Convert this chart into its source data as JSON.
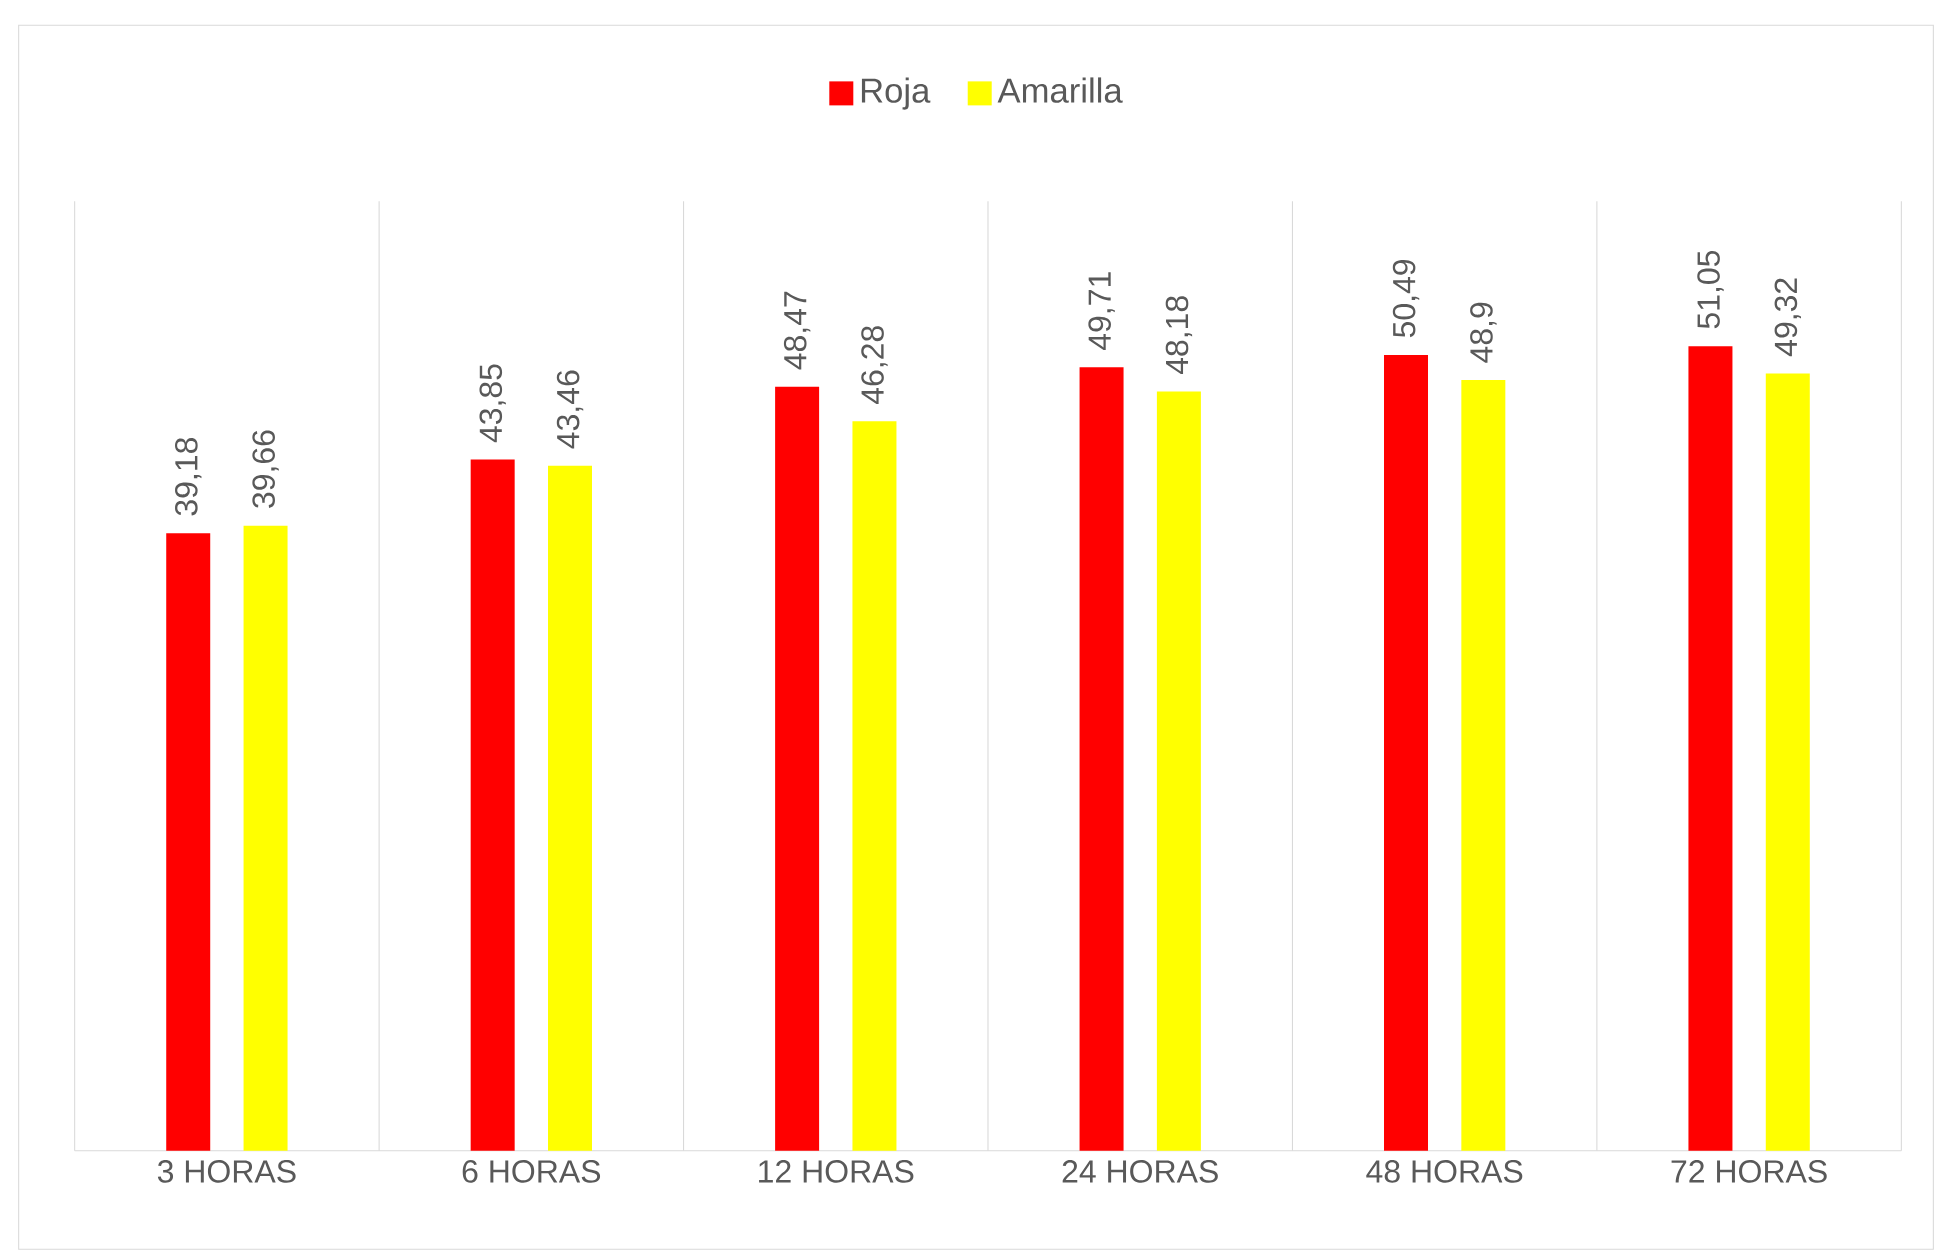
{
  "chart_data": {
    "type": "bar",
    "categories": [
      "3 HORAS",
      "6 HORAS",
      "12 HORAS",
      "24 HORAS",
      "48 HORAS",
      "72 HORAS"
    ],
    "series": [
      {
        "name": "Roja",
        "color": "#ff0000",
        "values": [
          39.18,
          43.85,
          48.47,
          49.71,
          50.49,
          51.05
        ],
        "value_labels": [
          "39,18",
          "43,85",
          "48,47",
          "49,71",
          "50,49",
          "51,05"
        ]
      },
      {
        "name": "Amarilla",
        "color": "#ffff00",
        "values": [
          39.66,
          43.46,
          46.28,
          48.18,
          48.9,
          49.32
        ],
        "value_labels": [
          "39,66",
          "43,46",
          "46,28",
          "48,18",
          "48,9",
          "49,32"
        ]
      }
    ],
    "grid": "x",
    "legend": "top"
  }
}
